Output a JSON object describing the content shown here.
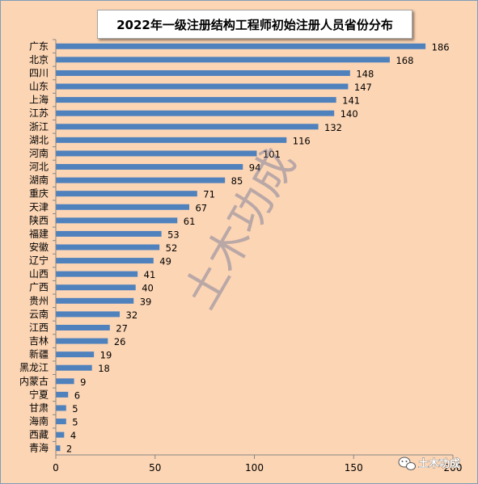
{
  "chart_data": {
    "type": "bar",
    "orientation": "horizontal",
    "title": "2022年一级注册结构工程师初始注册人员省份分布",
    "categories": [
      "广东",
      "北京",
      "四川",
      "山东",
      "上海",
      "江苏",
      "浙江",
      "湖北",
      "河南",
      "河北",
      "湖南",
      "重庆",
      "天津",
      "陕西",
      "福建",
      "安徽",
      "辽宁",
      "山西",
      "广西",
      "贵州",
      "云南",
      "江西",
      "吉林",
      "新疆",
      "黑龙江",
      "内蒙古",
      "宁夏",
      "甘肃",
      "海南",
      "西藏",
      "青海"
    ],
    "values": [
      186,
      168,
      148,
      147,
      141,
      140,
      132,
      116,
      101,
      94,
      85,
      71,
      67,
      61,
      53,
      52,
      49,
      41,
      40,
      39,
      32,
      27,
      26,
      19,
      18,
      9,
      6,
      5,
      5,
      4,
      2
    ],
    "xlim": [
      0,
      200
    ],
    "x_ticks": [
      0,
      50,
      100,
      150,
      200
    ],
    "bar_color": "#4f81bd",
    "background_color": "#fcd5b4",
    "grid": false,
    "legend": "none"
  },
  "watermark": {
    "text": "土木功成",
    "icon": "wechat-icon",
    "brand_text": "土木功成"
  }
}
